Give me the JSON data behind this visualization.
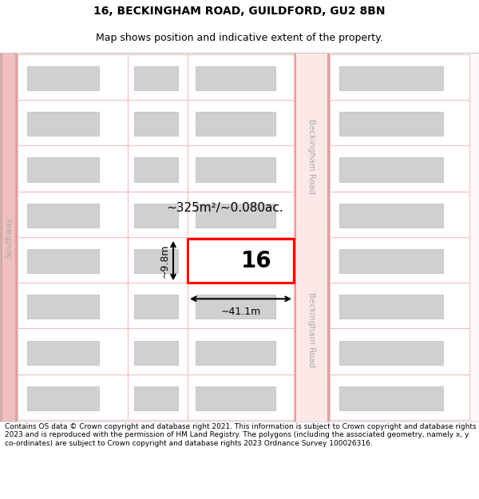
{
  "title_line1": "16, BECKINGHAM ROAD, GUILDFORD, GU2 8BN",
  "title_line2": "Map shows position and indicative extent of the property.",
  "footer_text": "Contains OS data © Crown copyright and database right 2021. This information is subject to Crown copyright and database rights 2023 and is reproduced with the permission of HM Land Registry. The polygons (including the associated geometry, namely x, y co-ordinates) are subject to Crown copyright and database rights 2023 Ordnance Survey 100026316.",
  "road_color": "#f5c0c0",
  "road_stroke": "#e89090",
  "building_fill": "#d0d0d0",
  "building_stroke": "#bbbbbb",
  "highlight_stroke": "#ff0000",
  "road_label_left": "Southway",
  "road_label_right_top": "Beckingham Road",
  "road_label_right_bottom": "Beckingham Road",
  "property_number": "16",
  "area_label": "~325m²/~0.080ac.",
  "width_label": "~41.1m",
  "height_label": "~9.8m",
  "title_fontsize": 10,
  "subtitle_fontsize": 9,
  "footer_fontsize": 6.5,
  "background_color": "#ffffff"
}
